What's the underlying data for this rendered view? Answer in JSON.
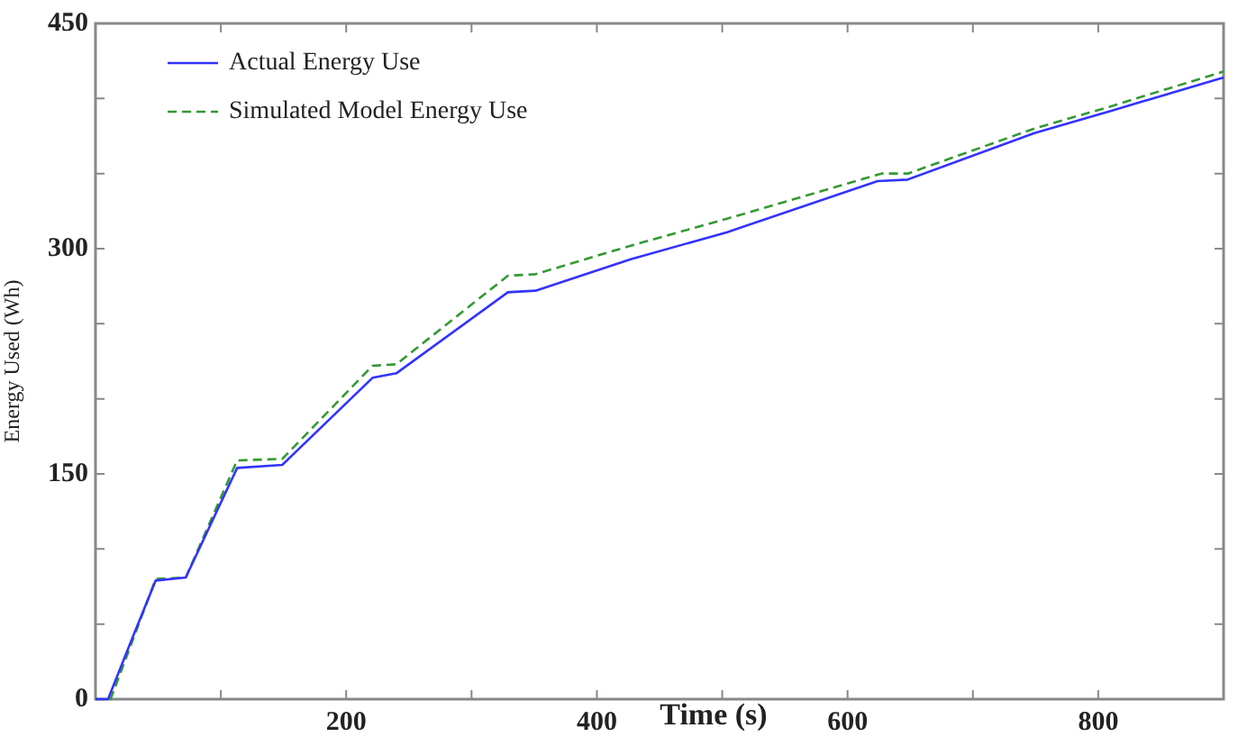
{
  "chart_data": {
    "type": "line",
    "xlabel": "Time (s)",
    "ylabel": "Energy Used (Wh)",
    "xlim": [
      0,
      900
    ],
    "ylim": [
      0,
      450
    ],
    "xticks": [
      {
        "value": 0,
        "label": null
      },
      {
        "value": 100,
        "label": null
      },
      200,
      {
        "value": 300,
        "label": null
      },
      400,
      {
        "value": 500,
        "label": null
      },
      600,
      {
        "value": 700,
        "label": null
      },
      800
    ],
    "yticks": [
      0,
      {
        "value": 50,
        "label": null
      },
      {
        "value": 100,
        "label": null
      },
      150,
      {
        "value": 200,
        "label": null
      },
      {
        "value": 250,
        "label": null
      },
      300,
      {
        "value": 350,
        "label": null
      },
      {
        "value": 400,
        "label": null
      },
      450
    ],
    "grid": false,
    "legend": "top left",
    "marker": "none",
    "series": [
      {
        "name": "Actual Energy Use",
        "color": "#3333ff",
        "line_style": "solid",
        "x": [
          0,
          10,
          30,
          48,
          72,
          113,
          149,
          221,
          240,
          329,
          351,
          427,
          504,
          624,
          648,
          749,
          811,
          900
        ],
        "values": [
          0,
          0,
          42,
          79,
          81,
          154,
          156,
          214,
          217,
          271,
          272,
          293,
          311,
          345,
          346,
          377,
          392,
          414
        ]
      },
      {
        "name": "Simulated Model Energy Use",
        "color": "#339933",
        "line_style": "dashed",
        "x": [
          0,
          12,
          30,
          48,
          72,
          113,
          149,
          221,
          240,
          329,
          351,
          427,
          504,
          627,
          648,
          749,
          811,
          900
        ],
        "values": [
          0,
          0,
          40,
          80,
          81,
          159,
          160,
          222,
          223,
          282,
          283,
          302,
          320,
          350,
          350,
          380,
          395,
          418
        ]
      }
    ]
  }
}
